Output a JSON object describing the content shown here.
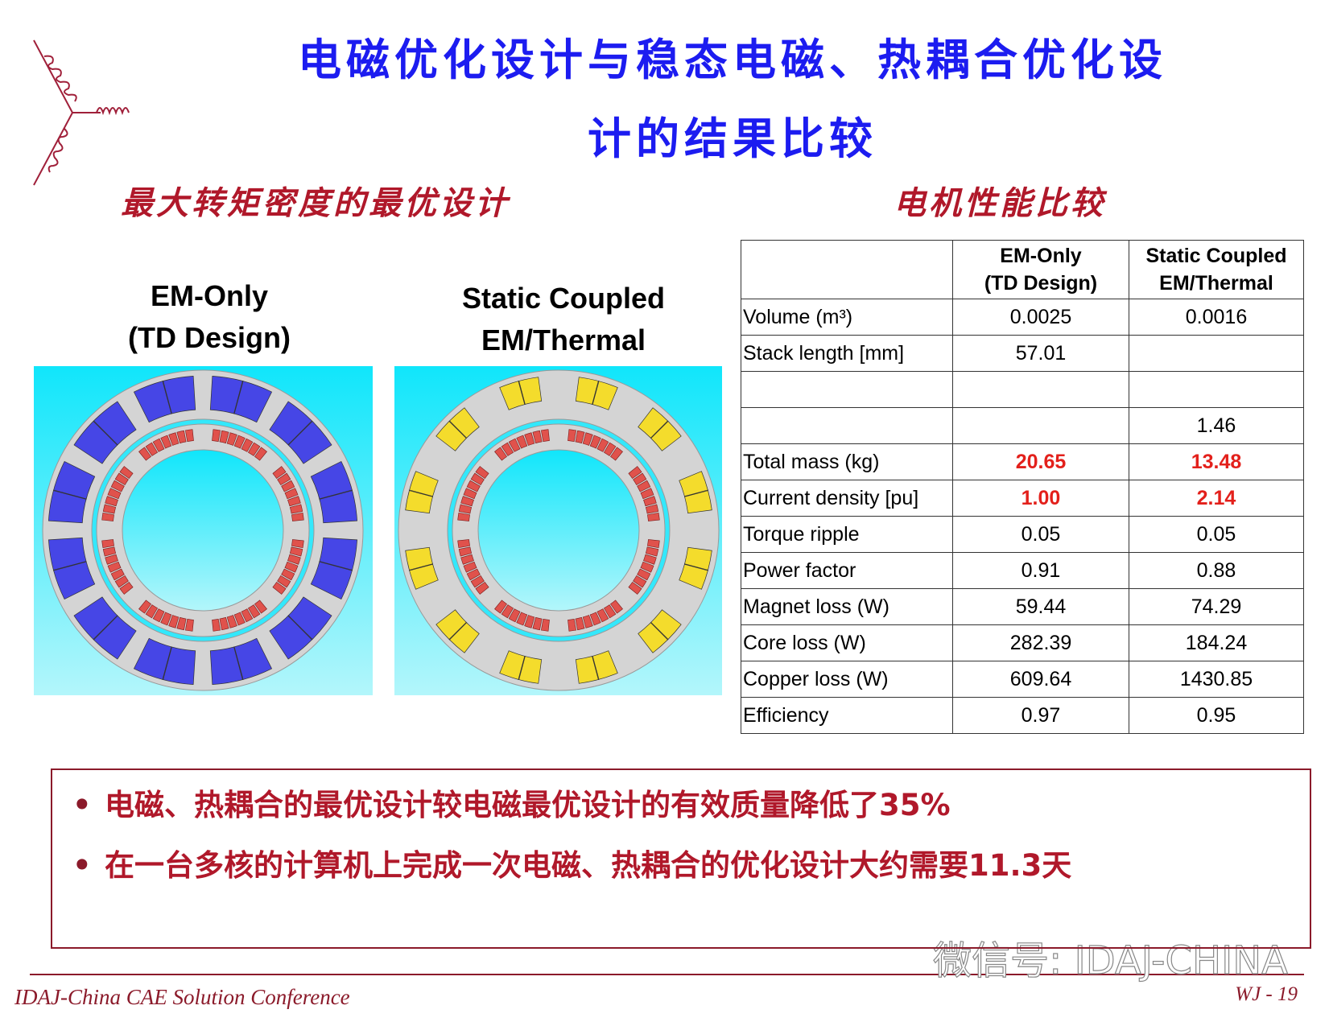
{
  "title_lines": [
    "电磁优化设计与稳态电磁、热耦合优化设",
    "计的结果比较"
  ],
  "left_heading": "最大转矩密度的最优设计",
  "right_heading": "电机性能比较",
  "figures": [
    {
      "label_lines": [
        "EM-Only",
        "(TD Design)"
      ],
      "slot_color": "#4646e6"
    },
    {
      "label_lines": [
        "Static Coupled",
        "EM/Thermal"
      ],
      "slot_color": "#f4dc2c"
    }
  ],
  "table": {
    "columns": [
      [
        "EM-Only",
        "(TD Design)"
      ],
      [
        "Static Coupled",
        "EM/Thermal"
      ]
    ],
    "rows": [
      {
        "label": "Volume (m³)",
        "values": [
          "0.0025",
          "0.0016"
        ]
      },
      {
        "label": "Stack length [mm]",
        "values": [
          "57.01",
          null
        ]
      },
      {
        "label": null,
        "values": [
          null,
          null
        ]
      },
      {
        "label": null,
        "values": [
          null,
          "1.46"
        ]
      },
      {
        "label": "Total mass (kg)",
        "values": [
          "20.65",
          "13.48"
        ],
        "highlight_color": "#e3201b"
      },
      {
        "label": "Current density [pu]",
        "values": [
          "1.00",
          "2.14"
        ],
        "highlight_color": "#e3201b"
      },
      {
        "label": "Torque ripple",
        "values": [
          "0.05",
          "0.05"
        ]
      },
      {
        "label": "Power factor",
        "values": [
          "0.91",
          "0.88"
        ]
      },
      {
        "label": "Magnet loss (W)",
        "values": [
          "59.44",
          "74.29"
        ]
      },
      {
        "label": "Core loss (W)",
        "values": [
          "282.39",
          "184.24"
        ]
      },
      {
        "label": "Copper loss (W)",
        "values": [
          "609.64",
          "1430.85"
        ]
      },
      {
        "label": "Efficiency",
        "values": [
          "0.97",
          "0.95"
        ]
      }
    ]
  },
  "bullets": [
    "电磁、热耦合的最优设计较电磁最优设计的有效质量降低了35%",
    "在一台多核的计算机上完成一次电磁、热耦合的优化设计大约需要11.3天"
  ],
  "watermark": "微信号: IDAJ-CHINA",
  "footer": {
    "left": "IDAJ-China CAE Solution Conference",
    "right": "WJ - 19"
  }
}
